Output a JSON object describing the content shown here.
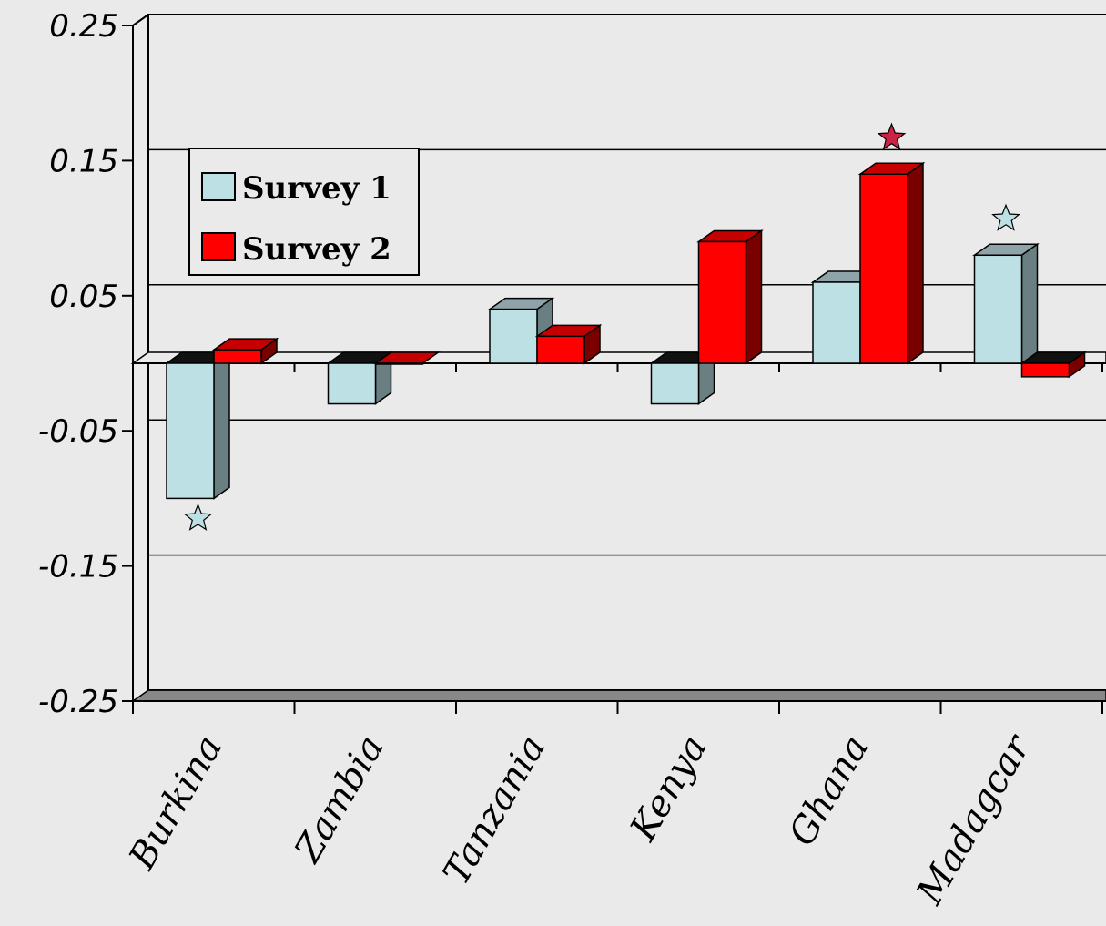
{
  "chart_data": {
    "type": "bar",
    "title": "",
    "xlabel": "",
    "ylabel": "",
    "ylim": [
      -0.25,
      0.25
    ],
    "yticks": [
      "0.25",
      "0.15",
      "0.05",
      "-0.05",
      "-0.15",
      "-0.25"
    ],
    "categories": [
      "Burkina",
      "Zambia",
      "Tanzania",
      "Kenya",
      "Ghana",
      "Madagcar"
    ],
    "series": [
      {
        "name": "Survey 1",
        "color": "#bde0e4",
        "side_color": "#6a7f82",
        "top_color": "#8fa4a8",
        "values": [
          -0.1,
          -0.03,
          0.04,
          -0.03,
          0.06,
          0.08
        ],
        "starred": [
          true,
          false,
          false,
          false,
          false,
          true
        ]
      },
      {
        "name": "Survey 2",
        "color": "#ff0000",
        "side_color": "#7a0000",
        "top_color": "#c40000",
        "values": [
          0.01,
          0.0,
          0.02,
          0.09,
          0.14,
          -0.01
        ],
        "starred": [
          false,
          false,
          false,
          false,
          true,
          false
        ]
      }
    ],
    "legend_position": "top-left",
    "grid": true,
    "star_colors": [
      "#bde0e4",
      "#cc2244"
    ]
  }
}
